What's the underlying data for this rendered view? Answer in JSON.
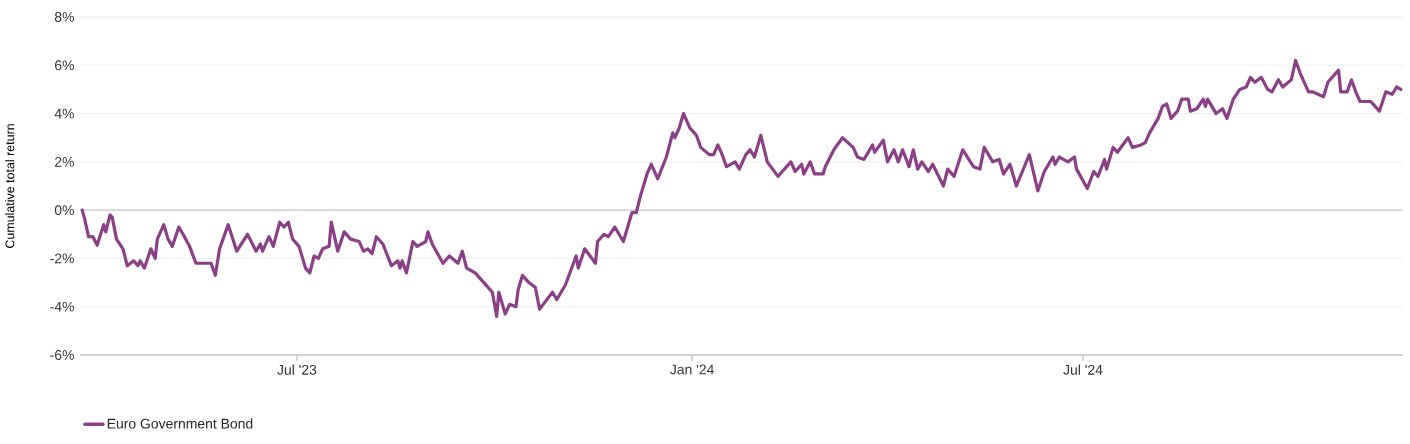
{
  "chart_data": {
    "type": "line",
    "ylabel": "Cumulative total return",
    "x": [
      "2023-03-23",
      "2023-03-24",
      "2023-03-26",
      "2023-03-28",
      "2023-03-30",
      "2023-04-02",
      "2023-04-03",
      "2023-04-05",
      "2023-04-06",
      "2023-04-08",
      "2023-04-11",
      "2023-04-13",
      "2023-04-16",
      "2023-04-18",
      "2023-04-19",
      "2023-04-21",
      "2023-04-24",
      "2023-04-26",
      "2023-04-27",
      "2023-04-30",
      "2023-05-02",
      "2023-05-04",
      "2023-05-07",
      "2023-05-09",
      "2023-05-12",
      "2023-05-15",
      "2023-05-22",
      "2023-05-24",
      "2023-05-26",
      "2023-05-30",
      "2023-06-03",
      "2023-06-08",
      "2023-06-12",
      "2023-06-14",
      "2023-06-15",
      "2023-06-18",
      "2023-06-20",
      "2023-06-23",
      "2023-06-25",
      "2023-06-27",
      "2023-06-29",
      "2023-07-02",
      "2023-07-05",
      "2023-07-07",
      "2023-07-09",
      "2023-07-11",
      "2023-07-13",
      "2023-07-16",
      "2023-07-17",
      "2023-07-20",
      "2023-07-23",
      "2023-07-26",
      "2023-07-30",
      "2023-08-01",
      "2023-08-03",
      "2023-08-05",
      "2023-08-07",
      "2023-08-10",
      "2023-08-14",
      "2023-08-17",
      "2023-08-18",
      "2023-08-19",
      "2023-08-21",
      "2023-08-24",
      "2023-08-26",
      "2023-08-30",
      "2023-08-31",
      "2023-09-02",
      "2023-09-07",
      "2023-09-10",
      "2023-09-14",
      "2023-09-16",
      "2023-09-18",
      "2023-09-22",
      "2023-09-28",
      "2023-09-30",
      "2023-10-02",
      "2023-10-03",
      "2023-10-06",
      "2023-10-08",
      "2023-10-11",
      "2023-10-12",
      "2023-10-14",
      "2023-10-17",
      "2023-10-20",
      "2023-10-22",
      "2023-10-28",
      "2023-10-30",
      "2023-11-03",
      "2023-11-08",
      "2023-11-09",
      "2023-11-12",
      "2023-11-17",
      "2023-11-18",
      "2023-11-21",
      "2023-11-23",
      "2023-11-26",
      "2023-11-30",
      "2023-12-04",
      "2023-12-06",
      "2023-12-08",
      "2023-12-11",
      "2023-12-13",
      "2023-12-16",
      "2023-12-20",
      "2023-12-23",
      "2023-12-24",
      "2023-12-26",
      "2023-12-28",
      "2023-12-31",
      "2024-01-03",
      "2024-01-05",
      "2024-01-09",
      "2024-01-11",
      "2024-01-13",
      "2024-01-15",
      "2024-01-17",
      "2024-01-21",
      "2024-01-23",
      "2024-01-26",
      "2024-01-28",
      "2024-01-30",
      "2024-02-02",
      "2024-02-05",
      "2024-02-10",
      "2024-02-12",
      "2024-02-16",
      "2024-02-18",
      "2024-02-21",
      "2024-02-22",
      "2024-02-25",
      "2024-02-27",
      "2024-03-02",
      "2024-03-03",
      "2024-03-07",
      "2024-03-11",
      "2024-03-16",
      "2024-03-18",
      "2024-03-21",
      "2024-03-25",
      "2024-03-26",
      "2024-03-30",
      "2024-04-01",
      "2024-04-04",
      "2024-04-06",
      "2024-04-08",
      "2024-04-11",
      "2024-04-13",
      "2024-04-15",
      "2024-04-17",
      "2024-04-20",
      "2024-04-22",
      "2024-04-27",
      "2024-04-29",
      "2024-05-02",
      "2024-05-06",
      "2024-05-11",
      "2024-05-14",
      "2024-05-16",
      "2024-05-20",
      "2024-05-23",
      "2024-05-25",
      "2024-05-28",
      "2024-05-31",
      "2024-06-06",
      "2024-06-10",
      "2024-06-13",
      "2024-06-17",
      "2024-06-18",
      "2024-06-20",
      "2024-06-24",
      "2024-06-27",
      "2024-06-28",
      "2024-07-03",
      "2024-07-06",
      "2024-07-08",
      "2024-07-11",
      "2024-07-12",
      "2024-07-15",
      "2024-07-17",
      "2024-07-22",
      "2024-07-24",
      "2024-07-28",
      "2024-07-30",
      "2024-08-01",
      "2024-08-05",
      "2024-08-07",
      "2024-08-09",
      "2024-08-11",
      "2024-08-14",
      "2024-08-16",
      "2024-08-19",
      "2024-08-20",
      "2024-08-23",
      "2024-08-26",
      "2024-08-27",
      "2024-08-28",
      "2024-09-01",
      "2024-09-04",
      "2024-09-06",
      "2024-09-09",
      "2024-09-12",
      "2024-09-15",
      "2024-09-17",
      "2024-09-19",
      "2024-09-22",
      "2024-09-25",
      "2024-09-27",
      "2024-09-30",
      "2024-10-02",
      "2024-10-06",
      "2024-10-08",
      "2024-10-10",
      "2024-10-14",
      "2024-10-16",
      "2024-10-21",
      "2024-10-23",
      "2024-10-25",
      "2024-10-28",
      "2024-10-29",
      "2024-11-01",
      "2024-11-03",
      "2024-11-05",
      "2024-11-07",
      "2024-11-12",
      "2024-11-16",
      "2024-11-19",
      "2024-11-22",
      "2024-11-24",
      "2024-11-26"
    ],
    "series": [
      {
        "name": "Euro Government Bond",
        "color": "#8b3f86",
        "values": [
          0.0,
          -0.3,
          -1.1,
          -1.1,
          -1.45,
          -0.6,
          -0.9,
          -0.2,
          -0.3,
          -1.2,
          -1.6,
          -2.3,
          -2.1,
          -2.3,
          -2.1,
          -2.4,
          -1.6,
          -2.0,
          -1.2,
          -0.6,
          -1.2,
          -1.5,
          -0.7,
          -1.0,
          -1.5,
          -2.2,
          -2.2,
          -2.7,
          -1.6,
          -0.6,
          -1.7,
          -1.0,
          -1.7,
          -1.4,
          -1.7,
          -1.1,
          -1.5,
          -0.5,
          -0.7,
          -0.5,
          -1.2,
          -1.5,
          -2.4,
          -2.6,
          -1.9,
          -2.0,
          -1.6,
          -1.5,
          -0.5,
          -1.7,
          -0.9,
          -1.2,
          -1.3,
          -1.7,
          -1.6,
          -1.8,
          -1.1,
          -1.4,
          -2.3,
          -2.1,
          -2.4,
          -2.1,
          -2.6,
          -1.3,
          -1.5,
          -1.3,
          -0.9,
          -1.4,
          -2.2,
          -1.9,
          -2.2,
          -1.7,
          -2.4,
          -2.6,
          -3.2,
          -3.4,
          -4.4,
          -3.4,
          -4.3,
          -3.9,
          -4.0,
          -3.3,
          -2.7,
          -3.0,
          -3.2,
          -4.1,
          -3.4,
          -3.7,
          -3.1,
          -1.9,
          -2.4,
          -1.6,
          -2.2,
          -1.3,
          -1.0,
          -1.1,
          -0.7,
          -1.3,
          -0.1,
          -0.1,
          0.6,
          1.5,
          1.9,
          1.3,
          2.2,
          3.2,
          3.0,
          3.4,
          4.0,
          3.4,
          3.1,
          2.6,
          2.3,
          2.3,
          2.7,
          2.3,
          1.8,
          2.0,
          1.7,
          2.3,
          2.5,
          2.2,
          3.1,
          2.0,
          1.4,
          1.6,
          2.0,
          1.6,
          1.9,
          1.5,
          2.0,
          1.5,
          1.5,
          1.8,
          2.5,
          3.0,
          2.6,
          2.2,
          2.1,
          2.7,
          2.4,
          2.9,
          2.0,
          2.5,
          2.0,
          2.5,
          1.8,
          2.5,
          1.7,
          2.0,
          1.6,
          1.9,
          1.0,
          1.7,
          1.4,
          2.5,
          1.8,
          1.7,
          2.6,
          2.0,
          2.1,
          1.5,
          1.9,
          1.0,
          2.3,
          0.8,
          1.6,
          2.2,
          1.9,
          2.2,
          2.0,
          2.2,
          1.7,
          0.9,
          1.6,
          1.4,
          2.1,
          1.7,
          2.6,
          2.4,
          3.0,
          2.6,
          2.7,
          2.8,
          3.2,
          3.8,
          4.3,
          4.4,
          3.8,
          4.1,
          4.6,
          4.6,
          4.1,
          4.2,
          4.6,
          4.3,
          4.6,
          4.0,
          4.2,
          3.8,
          4.6,
          5.0,
          5.1,
          5.5,
          5.3,
          5.5,
          5.0,
          4.9,
          5.4,
          5.1,
          5.4,
          6.2,
          5.7,
          4.9,
          4.9,
          4.7,
          5.3,
          5.5,
          5.8,
          4.9,
          4.9,
          5.4,
          4.9,
          4.5,
          4.5,
          4.1,
          4.9,
          4.8,
          5.1,
          5.0
        ]
      }
    ],
    "xlim": [
      "2023-03-22",
      "2024-11-27"
    ],
    "xticks": [
      {
        "value": "2023-07-01",
        "label": "Jul '23"
      },
      {
        "value": "2024-01-01",
        "label": "Jan '24"
      },
      {
        "value": "2024-07-01",
        "label": "Jul '24"
      }
    ],
    "ylim": [
      -6,
      8
    ],
    "yticks": [
      {
        "value": -6,
        "label": "-6%"
      },
      {
        "value": -4,
        "label": "-4%"
      },
      {
        "value": -2,
        "label": "-2%"
      },
      {
        "value": 0,
        "label": "0%"
      },
      {
        "value": 2,
        "label": "2%"
      },
      {
        "value": 4,
        "label": "4%"
      },
      {
        "value": 6,
        "label": "6%"
      },
      {
        "value": 8,
        "label": "8%"
      }
    ],
    "ref_lines": [
      {
        "axis": "y",
        "value": 0,
        "color": "#c8c8c8"
      }
    ],
    "grid": "y",
    "legend": "bottom",
    "line_style": "solid"
  }
}
